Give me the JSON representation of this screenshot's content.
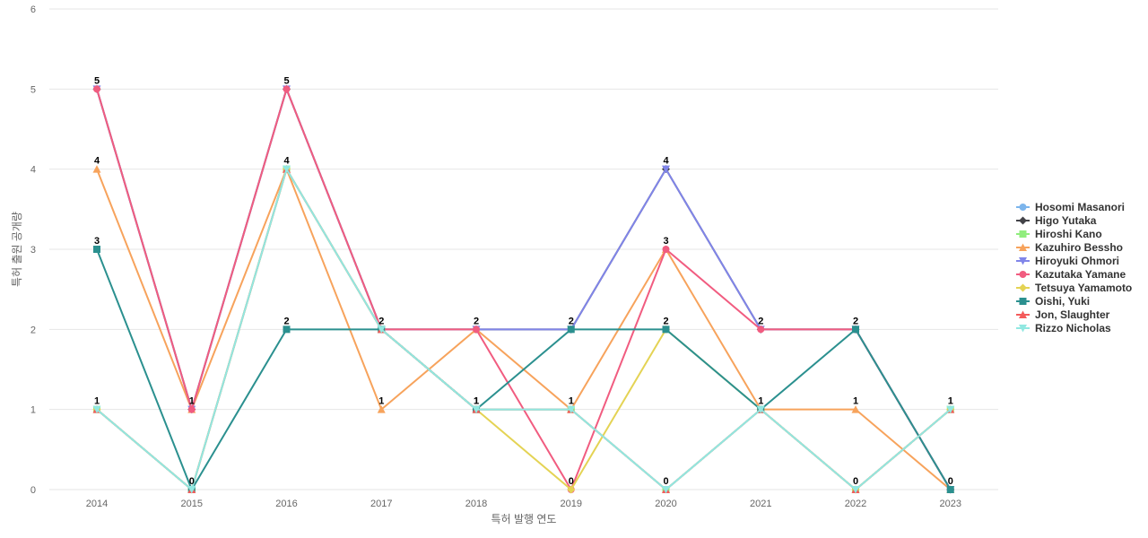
{
  "chart_data": {
    "type": "line",
    "title": "",
    "xlabel": "특허 발행 연도",
    "ylabel": "특허 출원 공개량",
    "x": [
      "2014",
      "2015",
      "2016",
      "2017",
      "2018",
      "2019",
      "2020",
      "2021",
      "2022",
      "2023"
    ],
    "ylim": [
      0,
      6
    ],
    "yticks": [
      "0",
      "1",
      "2",
      "3",
      "4",
      "5",
      "6"
    ],
    "grid": true,
    "legend_position": "right",
    "series": [
      {
        "name": "Hosomi Masanori",
        "color": "#7cb5ec",
        "marker": "circle",
        "values": [
          1,
          0,
          4,
          2,
          1,
          1,
          0,
          1,
          0,
          1
        ]
      },
      {
        "name": "Higo Yutaka",
        "color": "#434348",
        "marker": "diamond",
        "values": [
          5,
          1,
          5,
          2,
          2,
          2,
          4,
          2,
          2,
          0
        ]
      },
      {
        "name": "Hiroshi Kano",
        "color": "#90ed7d",
        "marker": "square",
        "values": [
          1,
          0,
          4,
          2,
          1,
          1,
          0,
          1,
          0,
          1
        ]
      },
      {
        "name": "Kazuhiro Bessho",
        "color": "#f7a35c",
        "marker": "triangle",
        "values": [
          4,
          1,
          4,
          1,
          2,
          1,
          3,
          1,
          1,
          0
        ]
      },
      {
        "name": "Hiroyuki Ohmori",
        "color": "#8085e9",
        "marker": "triangle-down",
        "values": [
          5,
          1,
          5,
          2,
          2,
          2,
          4,
          2,
          2,
          0
        ]
      },
      {
        "name": "Kazutaka Yamane",
        "color": "#f15c80",
        "marker": "circle",
        "values": [
          5,
          1,
          5,
          2,
          2,
          0,
          3,
          2,
          2,
          0
        ]
      },
      {
        "name": "Tetsuya Yamamoto",
        "color": "#e4d354",
        "marker": "diamond",
        "values": [
          1,
          0,
          4,
          2,
          1,
          0,
          2,
          1,
          0,
          1
        ]
      },
      {
        "name": "Oishi, Yuki",
        "color": "#2b908f",
        "marker": "square",
        "values": [
          3,
          0,
          2,
          2,
          1,
          2,
          2,
          1,
          2,
          0
        ]
      },
      {
        "name": "Jon, Slaughter",
        "color": "#f45b5b",
        "marker": "triangle",
        "values": [
          1,
          0,
          4,
          2,
          1,
          1,
          0,
          1,
          0,
          1
        ]
      },
      {
        "name": "Rizzo Nicholas",
        "color": "#91e8e1",
        "marker": "triangle-down",
        "values": [
          1,
          0,
          4,
          2,
          1,
          1,
          0,
          1,
          0,
          1
        ]
      }
    ],
    "data_labels": [
      5,
      1,
      5,
      2,
      2,
      2,
      4,
      2,
      2,
      1
    ],
    "data_labels_low": [
      4,
      0,
      4,
      null,
      1,
      1,
      3,
      1,
      1,
      0
    ],
    "data_labels_extra": [
      3,
      null,
      2,
      null,
      1,
      0,
      2,
      null,
      0,
      null
    ],
    "data_labels_min": [
      1,
      null,
      null,
      1,
      null,
      null,
      0,
      null,
      null,
      null
    ]
  }
}
